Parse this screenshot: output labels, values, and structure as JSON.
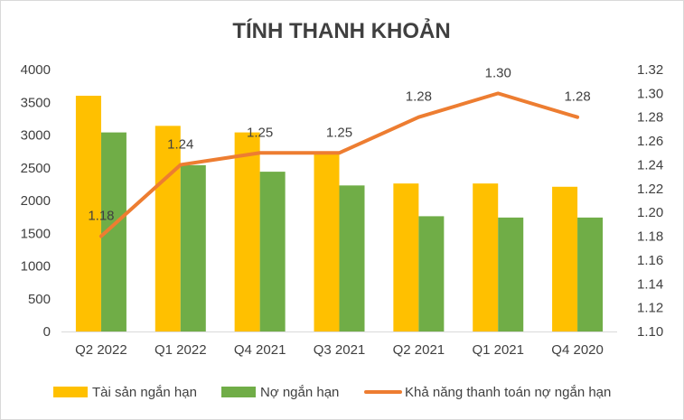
{
  "chart_data": {
    "type": "bar",
    "title": "TÍNH THANH KHOẢN",
    "categories": [
      "Q2 2022",
      "Q1 2022",
      "Q4 2021",
      "Q3 2021",
      "Q2 2021",
      "Q1 2021",
      "Q4 2020"
    ],
    "series": [
      {
        "name": "Tài sản ngắn hạn",
        "type": "bar",
        "axis": "left",
        "color": "#FFC000",
        "values": [
          3600,
          3140,
          3040,
          2750,
          2260,
          2260,
          2210
        ]
      },
      {
        "name": "Nợ ngắn hạn",
        "type": "bar",
        "axis": "left",
        "color": "#70AD47",
        "values": [
          3040,
          2540,
          2440,
          2230,
          1760,
          1740,
          1740
        ]
      },
      {
        "name": "Khả năng thanh toán nợ ngắn hạn",
        "type": "line",
        "axis": "right",
        "color": "#ED7D31",
        "values": [
          1.18,
          1.24,
          1.25,
          1.25,
          1.28,
          1.3,
          1.28
        ],
        "labels": [
          "1.18",
          "1.24",
          "1.25",
          "1.25",
          "1.28",
          "1.30",
          "1.28"
        ]
      }
    ],
    "y_left": {
      "min": 0,
      "max": 4000,
      "step": 500,
      "tick_labels": [
        "0",
        "500",
        "1000",
        "1500",
        "2000",
        "2500",
        "3000",
        "3500",
        "4000"
      ]
    },
    "y_right": {
      "min": 1.1,
      "max": 1.32,
      "step": 0.02,
      "tick_labels": [
        "1.10",
        "1.12",
        "1.14",
        "1.16",
        "1.18",
        "1.20",
        "1.22",
        "1.24",
        "1.26",
        "1.28",
        "1.30",
        "1.32"
      ]
    },
    "grid": false,
    "legend_position": "bottom"
  }
}
